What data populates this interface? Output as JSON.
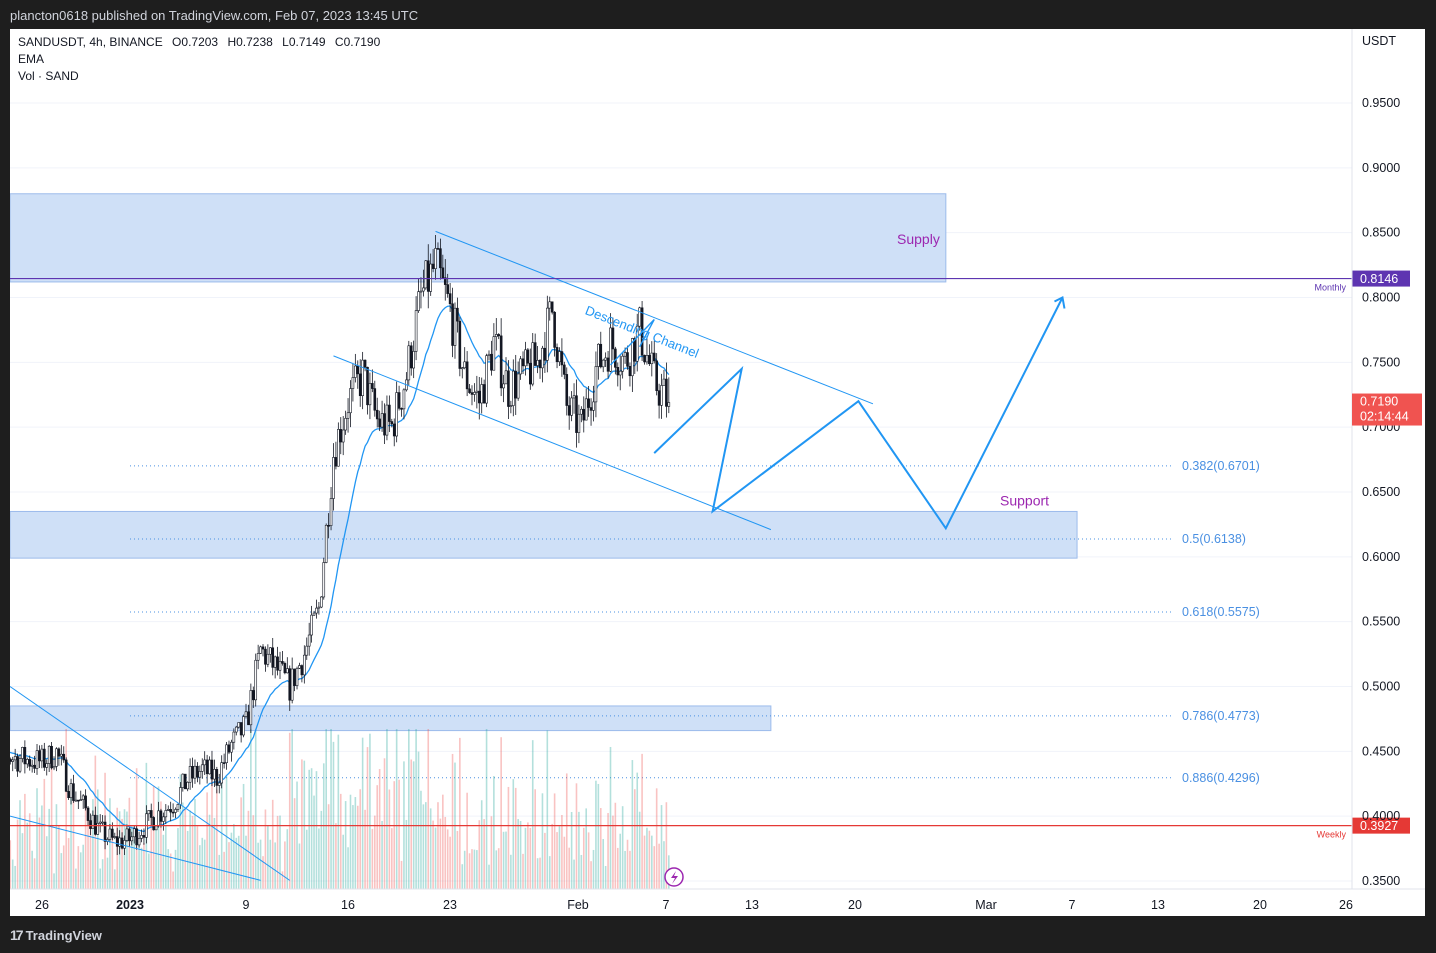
{
  "header": {
    "publish_text": "plancton0618 published on TradingView.com, Feb 07, 2023 13:45 UTC"
  },
  "footer": {
    "brand": "TradingView",
    "logo_mark": "17"
  },
  "legend": {
    "symbol": "SANDUSDT, 4h, BINANCE",
    "open_label": "O",
    "open": "0.7203",
    "high_label": "H",
    "high": "0.7238",
    "low_label": "L",
    "low": "0.7149",
    "close_label": "C",
    "close": "0.7190",
    "indicator_1": "EMA",
    "indicator_2": "Vol · SAND"
  },
  "colors": {
    "zone_fill": "#cfe0f7",
    "zone_border": "#9cbbeb",
    "up_candle": "#26a69a",
    "down_candle": "#ef5350",
    "candle": "#131722",
    "ema": "#2196f3",
    "channel": "#2196f3",
    "projection": "#2196f3",
    "monthly_line": "#5e35b1",
    "weekly_line": "#e53935",
    "price_tag": "#f05350",
    "fib": "#4a90e2"
  },
  "chart_data": {
    "type": "candlestick",
    "symbol": "SANDUSDT",
    "timeframe": "4h",
    "exchange": "BINANCE",
    "y_axis": {
      "unit": "USDT",
      "scale": "linear",
      "ylim": [
        0.34,
        0.99
      ],
      "ticks": [
        "0.9500",
        "0.9000",
        "0.8500",
        "0.8000",
        "0.7500",
        "0.7000",
        "0.6500",
        "0.6000",
        "0.5500",
        "0.5000",
        "0.4500",
        "0.4000",
        "0.3500"
      ]
    },
    "x_axis": {
      "ticks": [
        "26",
        "2023",
        "9",
        "16",
        "23",
        "Feb",
        "7",
        "13",
        "20",
        "Mar",
        "7",
        "13",
        "20",
        "26"
      ]
    },
    "price_path": [
      [
        "2022-12-22",
        0.456
      ],
      [
        "2022-12-24",
        0.445
      ],
      [
        "2022-12-26",
        0.442
      ],
      [
        "2022-12-27",
        0.449
      ],
      [
        "2022-12-28",
        0.42
      ],
      [
        "2022-12-29",
        0.405
      ],
      [
        "2022-12-30",
        0.388
      ],
      [
        "2022-12-31",
        0.38
      ],
      [
        "2023-01-01",
        0.382
      ],
      [
        "2023-01-02",
        0.392
      ],
      [
        "2023-01-03",
        0.402
      ],
      [
        "2023-01-04",
        0.41
      ],
      [
        "2023-01-05",
        0.428
      ],
      [
        "2023-01-06",
        0.436
      ],
      [
        "2023-01-07",
        0.43
      ],
      [
        "2023-01-08",
        0.455
      ],
      [
        "2023-01-09",
        0.47
      ],
      [
        "2023-01-10",
        0.528
      ],
      [
        "2023-01-11",
        0.515
      ],
      [
        "2023-01-12",
        0.5
      ],
      [
        "2023-01-13",
        0.525
      ],
      [
        "2023-01-14",
        0.56
      ],
      [
        "2023-01-15",
        0.68
      ],
      [
        "2023-01-16",
        0.72
      ],
      [
        "2023-01-17",
        0.74
      ],
      [
        "2023-01-18",
        0.705
      ],
      [
        "2023-01-19",
        0.7
      ],
      [
        "2023-01-20",
        0.74
      ],
      [
        "2023-01-21",
        0.8
      ],
      [
        "2023-01-22",
        0.825
      ],
      [
        "2023-01-23",
        0.79
      ],
      [
        "2023-01-24",
        0.74
      ],
      [
        "2023-01-25",
        0.72
      ],
      [
        "2023-01-26",
        0.765
      ],
      [
        "2023-01-27",
        0.73
      ],
      [
        "2023-01-28",
        0.74
      ],
      [
        "2023-01-29",
        0.75
      ],
      [
        "2023-01-30",
        0.79
      ],
      [
        "2023-01-31",
        0.715
      ],
      [
        "2023-02-01",
        0.7
      ],
      [
        "2023-02-02",
        0.745
      ],
      [
        "2023-02-03",
        0.765
      ],
      [
        "2023-02-04",
        0.75
      ],
      [
        "2023-02-05",
        0.775
      ],
      [
        "2023-02-06",
        0.735
      ],
      [
        "2023-02-07",
        0.719
      ]
    ],
    "ema": {
      "label": "EMA"
    },
    "volume": {
      "label": "Vol · SAND"
    },
    "horizontal_lines": [
      {
        "label": "Monthly",
        "value": 0.8146,
        "tag": "0.8146"
      },
      {
        "label": "Weekly",
        "value": 0.3927,
        "tag": "0.3927"
      }
    ],
    "last_price": {
      "value": "0.7190",
      "countdown": "02:14:44"
    },
    "zones": [
      {
        "label": "Supply",
        "from": "2022-12-22",
        "to": "2023-02-26",
        "top": 0.88,
        "bottom": 0.812
      },
      {
        "label": "Support",
        "from": "2022-12-22",
        "to": "2023-03-07",
        "top": 0.635,
        "bottom": 0.599
      },
      {
        "label": "",
        "from": "2022-12-22",
        "to": "2023-02-14",
        "top": 0.485,
        "bottom": 0.466
      }
    ],
    "fib_levels": [
      {
        "label": "0.382(0.6701)",
        "value": 0.6701
      },
      {
        "label": "0.5(0.6138)",
        "value": 0.6138
      },
      {
        "label": "0.618(0.5575)",
        "value": 0.5575
      },
      {
        "label": "0.786(0.4773)",
        "value": 0.4773
      },
      {
        "label": "0.886(0.4296)",
        "value": 0.4296
      }
    ],
    "channel_label": "Descending Channel",
    "projection_path": [
      [
        "2023-02-06",
        0.68
      ],
      [
        "2023-02-12",
        0.745
      ],
      [
        "2023-02-10",
        0.635
      ],
      [
        "2023-02-20",
        0.72
      ],
      [
        "2023-02-26",
        0.622
      ],
      [
        "2023-03-06",
        0.8
      ]
    ]
  }
}
